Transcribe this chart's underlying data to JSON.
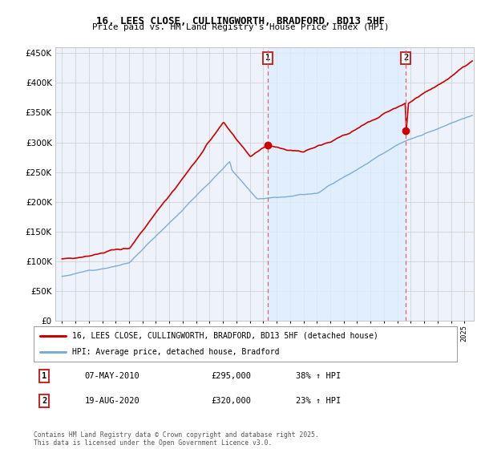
{
  "title": "16, LEES CLOSE, CULLINGWORTH, BRADFORD, BD13 5HF",
  "subtitle": "Price paid vs. HM Land Registry's House Price Index (HPI)",
  "legend_line1": "16, LEES CLOSE, CULLINGWORTH, BRADFORD, BD13 5HF (detached house)",
  "legend_line2": "HPI: Average price, detached house, Bradford",
  "marker1_label": "1",
  "marker1_date": "07-MAY-2010",
  "marker1_price": "£295,000",
  "marker1_pct": "38% ↑ HPI",
  "marker1_x": 2010.35,
  "marker1_y": 295000,
  "marker2_label": "2",
  "marker2_date": "19-AUG-2020",
  "marker2_price": "£320,000",
  "marker2_pct": "23% ↑ HPI",
  "marker2_x": 2020.63,
  "marker2_y": 320000,
  "shade_x1": 2010.35,
  "shade_x2": 2020.63,
  "red_line_color": "#cc0000",
  "blue_line_color": "#7aaed6",
  "shade_color": "#ddeeff",
  "dashed_line_color": "#dd6666",
  "background_color": "#eef2fa",
  "grid_color": "#cccccc",
  "ylim": [
    0,
    460000
  ],
  "xlim": [
    1994.5,
    2025.7
  ],
  "footer": "Contains HM Land Registry data © Crown copyright and database right 2025.\nThis data is licensed under the Open Government Licence v3.0."
}
